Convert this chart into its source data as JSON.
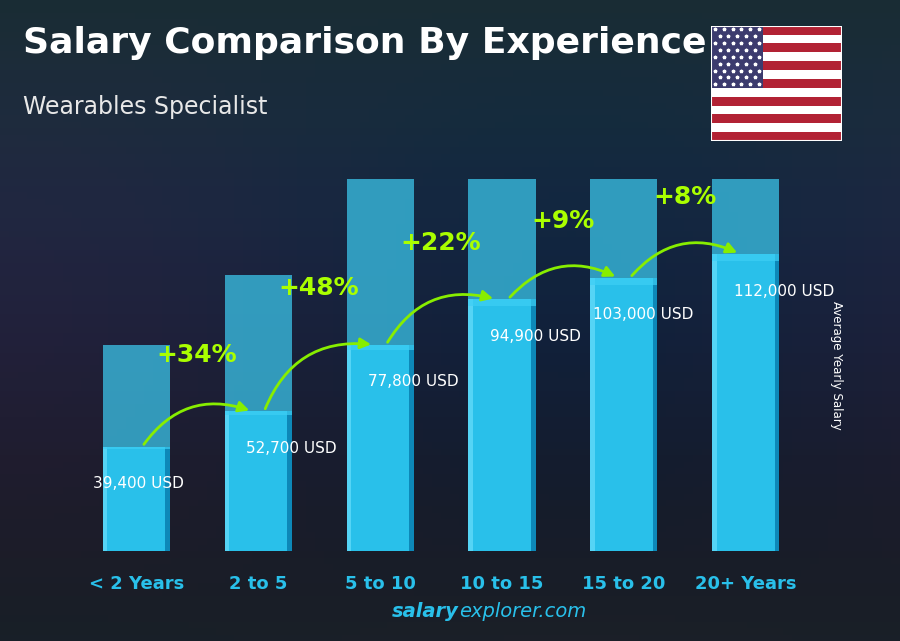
{
  "title": "Salary Comparison By Experience",
  "subtitle": "Wearables Specialist",
  "ylabel": "Average Yearly Salary",
  "categories": [
    "< 2 Years",
    "2 to 5",
    "5 to 10",
    "10 to 15",
    "15 to 20",
    "20+ Years"
  ],
  "values": [
    39400,
    52700,
    77800,
    94900,
    103000,
    112000
  ],
  "value_labels": [
    "39,400 USD",
    "52,700 USD",
    "77,800 USD",
    "94,900 USD",
    "103,000 USD",
    "112,000 USD"
  ],
  "pct_changes": [
    "+34%",
    "+48%",
    "+22%",
    "+9%",
    "+8%"
  ],
  "bar_color_face": "#29c0ea",
  "bar_color_light": "#55d4f5",
  "bar_color_dark": "#0d88b8",
  "bar_color_top": "#3dcff5",
  "bg_color": "#1c2b3a",
  "title_color": "#ffffff",
  "subtitle_color": "#e8e8e8",
  "value_label_color": "#ffffff",
  "pct_color": "#aaff00",
  "arrow_color": "#88ee00",
  "xticklabel_color": "#29c0ea",
  "footer_salary_color": "#29c0ea",
  "footer_bold": "salary",
  "footer_normal": "explorer.com",
  "ylim": [
    0,
    140000
  ],
  "title_fontsize": 26,
  "subtitle_fontsize": 17,
  "val_label_fontsize": 11,
  "pct_fontsize": 18,
  "xticklabel_fontsize": 13,
  "bar_width": 0.55
}
